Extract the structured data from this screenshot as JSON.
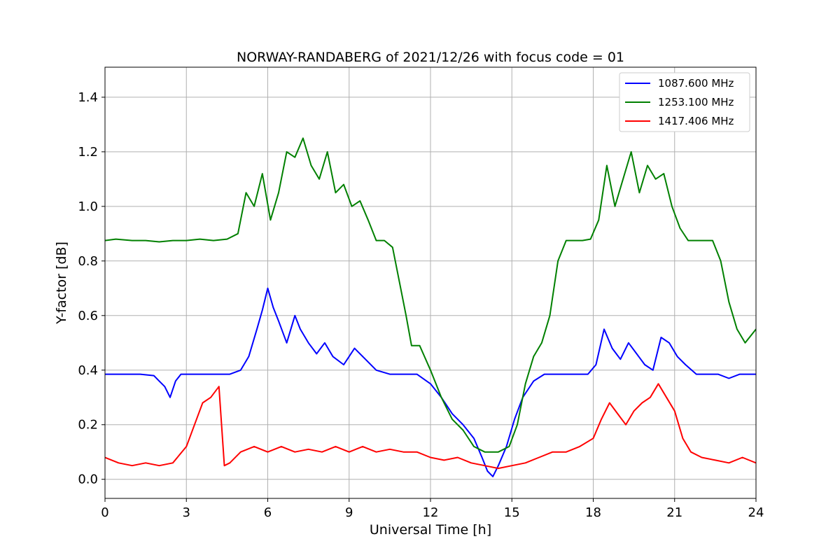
{
  "chart_data": {
    "type": "line",
    "title": "NORWAY-RANDABERG of 2021/12/26 with focus code = 01",
    "xlabel": "Universal Time [h]",
    "ylabel": "Y-factor [dB]",
    "xlim": [
      0,
      24
    ],
    "ylim": [
      -0.07,
      1.51
    ],
    "xticks": [
      0,
      3,
      6,
      9,
      12,
      15,
      18,
      21,
      24
    ],
    "xtick_labels": [
      "0",
      "3",
      "6",
      "9",
      "12",
      "15",
      "18",
      "21",
      "24"
    ],
    "yticks": [
      0.0,
      0.2,
      0.4,
      0.6,
      0.8,
      1.0,
      1.2,
      1.4
    ],
    "ytick_labels": [
      "0.0",
      "0.2",
      "0.4",
      "0.6",
      "0.8",
      "1.0",
      "1.2",
      "1.4"
    ],
    "grid": true,
    "legend_position": "top-right",
    "series": [
      {
        "name": "1087.600 MHz",
        "color": "#0000ff",
        "x": [
          0,
          1.3,
          1.8,
          2.0,
          2.2,
          2.4,
          2.6,
          2.8,
          3.2,
          4.0,
          4.6,
          5.0,
          5.3,
          5.6,
          5.8,
          6.0,
          6.2,
          6.4,
          6.7,
          7.0,
          7.2,
          7.5,
          7.8,
          8.1,
          8.4,
          8.8,
          9.2,
          9.6,
          10.0,
          10.5,
          11.0,
          11.5,
          12.0,
          12.4,
          12.8,
          13.2,
          13.6,
          13.9,
          14.1,
          14.3,
          14.5,
          14.8,
          15.1,
          15.4,
          15.8,
          16.2,
          16.6,
          17.0,
          17.4,
          17.8,
          18.1,
          18.4,
          18.7,
          19.0,
          19.3,
          19.6,
          19.9,
          20.2,
          20.5,
          20.8,
          21.1,
          21.4,
          21.8,
          22.2,
          22.6,
          23.0,
          23.4,
          24.0
        ],
        "y": [
          0.385,
          0.385,
          0.38,
          0.36,
          0.34,
          0.3,
          0.36,
          0.385,
          0.385,
          0.385,
          0.385,
          0.4,
          0.45,
          0.55,
          0.62,
          0.7,
          0.63,
          0.58,
          0.5,
          0.6,
          0.55,
          0.5,
          0.46,
          0.5,
          0.45,
          0.42,
          0.48,
          0.44,
          0.4,
          0.385,
          0.385,
          0.385,
          0.35,
          0.3,
          0.24,
          0.2,
          0.15,
          0.08,
          0.03,
          0.01,
          0.05,
          0.12,
          0.22,
          0.3,
          0.36,
          0.385,
          0.385,
          0.385,
          0.385,
          0.385,
          0.42,
          0.55,
          0.48,
          0.44,
          0.5,
          0.46,
          0.42,
          0.4,
          0.52,
          0.5,
          0.45,
          0.42,
          0.385,
          0.385,
          0.385,
          0.37,
          0.385,
          0.385
        ]
      },
      {
        "name": "1253.100 MHz",
        "color": "#008000",
        "x": [
          0,
          0.4,
          1.0,
          1.5,
          2.0,
          2.5,
          3.0,
          3.5,
          4.0,
          4.5,
          4.9,
          5.2,
          5.5,
          5.8,
          6.1,
          6.4,
          6.7,
          7.0,
          7.3,
          7.6,
          7.9,
          8.2,
          8.5,
          8.8,
          9.1,
          9.4,
          9.7,
          10.0,
          10.3,
          10.6,
          10.9,
          11.1,
          11.3,
          11.6,
          12.0,
          12.4,
          12.8,
          13.2,
          13.6,
          14.0,
          14.5,
          14.9,
          15.2,
          15.5,
          15.8,
          16.1,
          16.4,
          16.7,
          17.0,
          17.3,
          17.6,
          17.9,
          18.2,
          18.5,
          18.8,
          19.1,
          19.4,
          19.7,
          20.0,
          20.3,
          20.6,
          20.9,
          21.2,
          21.5,
          21.8,
          22.1,
          22.4,
          22.7,
          23.0,
          23.3,
          23.6,
          24.0
        ],
        "y": [
          0.875,
          0.88,
          0.875,
          0.875,
          0.87,
          0.875,
          0.875,
          0.88,
          0.875,
          0.88,
          0.9,
          1.05,
          1.0,
          1.12,
          0.95,
          1.05,
          1.2,
          1.18,
          1.25,
          1.15,
          1.1,
          1.2,
          1.05,
          1.08,
          1.0,
          1.02,
          0.95,
          0.875,
          0.875,
          0.85,
          0.7,
          0.6,
          0.49,
          0.49,
          0.4,
          0.3,
          0.22,
          0.18,
          0.12,
          0.1,
          0.1,
          0.12,
          0.2,
          0.35,
          0.45,
          0.5,
          0.6,
          0.8,
          0.875,
          0.875,
          0.875,
          0.88,
          0.95,
          1.15,
          1.0,
          1.1,
          1.2,
          1.05,
          1.15,
          1.1,
          1.12,
          1.0,
          0.92,
          0.875,
          0.875,
          0.875,
          0.875,
          0.8,
          0.65,
          0.55,
          0.5,
          0.55
        ]
      },
      {
        "name": "1417.406 MHz",
        "color": "#ff0000",
        "x": [
          0,
          0.5,
          1.0,
          1.5,
          2.0,
          2.5,
          3.0,
          3.3,
          3.6,
          3.9,
          4.2,
          4.4,
          4.6,
          5.0,
          5.5,
          6.0,
          6.5,
          7.0,
          7.5,
          8.0,
          8.5,
          9.0,
          9.5,
          10.0,
          10.5,
          11.0,
          11.5,
          12.0,
          12.5,
          13.0,
          13.5,
          14.0,
          14.5,
          15.0,
          15.5,
          16.0,
          16.5,
          17.0,
          17.5,
          18.0,
          18.3,
          18.6,
          18.9,
          19.2,
          19.5,
          19.8,
          20.1,
          20.4,
          20.7,
          21.0,
          21.3,
          21.6,
          22.0,
          22.5,
          23.0,
          23.5,
          24.0
        ],
        "y": [
          0.08,
          0.06,
          0.05,
          0.06,
          0.05,
          0.06,
          0.12,
          0.2,
          0.28,
          0.3,
          0.34,
          0.05,
          0.06,
          0.1,
          0.12,
          0.1,
          0.12,
          0.1,
          0.11,
          0.1,
          0.12,
          0.1,
          0.12,
          0.1,
          0.11,
          0.1,
          0.1,
          0.08,
          0.07,
          0.08,
          0.06,
          0.05,
          0.04,
          0.05,
          0.06,
          0.08,
          0.1,
          0.1,
          0.12,
          0.15,
          0.22,
          0.28,
          0.24,
          0.2,
          0.25,
          0.28,
          0.3,
          0.35,
          0.3,
          0.25,
          0.15,
          0.1,
          0.08,
          0.07,
          0.06,
          0.08,
          0.06
        ]
      }
    ]
  }
}
